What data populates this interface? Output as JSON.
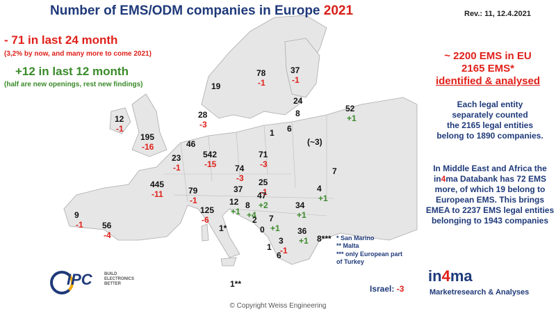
{
  "header": {
    "title_main": "Number of EMS/ODM companies in Europe",
    "title_year": "2021",
    "revision": "Rev.: 11, 12.4.2021"
  },
  "left_stats": {
    "line1": "-   71 in last 24 month",
    "line1_sub": "(3,2% by now, and many more to come 2021)",
    "line2": "+12 in last 12 month",
    "line2_sub": "(half are new openings, rest new findings)"
  },
  "right_panel": {
    "red_lines": [
      "~ 2200 EMS in EU",
      "2165 EMS*",
      "identified & analysed"
    ],
    "blue_block_1": [
      "Each legal entity",
      "separately counted",
      "the 2165 legal entities",
      "belong to 1890 companies."
    ],
    "blue_block_2_pre": "In Middle East and Africa the in",
    "blue_block_2_four": "4",
    "blue_block_2_post": "ma Databank has 72 EMS more, of which 19 belong to European EMS. This brings EMEA to 2237 EMS legal entities belonging to 1943 companies"
  },
  "legend": {
    "line1": "*     San Marino",
    "line2": "**    Malta",
    "line3": "***  only European part",
    "line4": "       of Turkey"
  },
  "israel": {
    "label": "Israel:",
    "value": "-3"
  },
  "in4ma": {
    "pre": "in",
    "four": "4",
    "post": "ma",
    "subtitle": "Marketresearch & Analyses"
  },
  "ipc": {
    "word": "IPC",
    "tag1": "BUILD",
    "tag2": "ELECTRONICS",
    "tag3": "BETTER"
  },
  "copyright": "© Copyright Weiss Engineering",
  "colors": {
    "title_blue": "#1f3a7a",
    "red": "#e0201a",
    "green": "#3a8a2a",
    "land": "#e6e6e6"
  },
  "map_labels": [
    {
      "id": "norway",
      "count": "19"
    },
    {
      "id": "sweden",
      "count": "78",
      "change": "-1",
      "sign": "neg"
    },
    {
      "id": "finland",
      "count": "37",
      "change": "-1",
      "sign": "neg"
    },
    {
      "id": "estonia",
      "count": "24"
    },
    {
      "id": "latvia",
      "count": "8"
    },
    {
      "id": "russia",
      "count": "52",
      "change": "+1",
      "sign": "pos"
    },
    {
      "id": "denmark",
      "count": "28",
      "change": "-3",
      "sign": "neg"
    },
    {
      "id": "lithuania",
      "count": "6"
    },
    {
      "id": "kaliningrad",
      "count": "1"
    },
    {
      "id": "belarus",
      "count": "(~3)"
    },
    {
      "id": "ireland",
      "count": "12",
      "change": "-1",
      "sign": "neg"
    },
    {
      "id": "uk",
      "count": "195",
      "change": "-16",
      "sign": "neg"
    },
    {
      "id": "netherlands",
      "count": "46"
    },
    {
      "id": "belgium",
      "count": "23",
      "change": "-1",
      "sign": "neg"
    },
    {
      "id": "germany",
      "count": "542",
      "change": "-15",
      "sign": "neg"
    },
    {
      "id": "poland",
      "count": "71",
      "change": "-3",
      "sign": "neg"
    },
    {
      "id": "ukraine",
      "count": "7"
    },
    {
      "id": "czechia",
      "count": "74",
      "change": "-3",
      "sign": "neg"
    },
    {
      "id": "slovakia",
      "count": "25",
      "change": "-1",
      "sign": "neg"
    },
    {
      "id": "moldova",
      "count": "4",
      "change": "+1",
      "sign": "pos"
    },
    {
      "id": "france",
      "count": "445",
      "change": "-11",
      "sign": "neg"
    },
    {
      "id": "switzerland",
      "count": "79",
      "change": "-1",
      "sign": "neg"
    },
    {
      "id": "austria",
      "count": "37"
    },
    {
      "id": "hungary",
      "count": "47",
      "change": "+2",
      "sign": "pos"
    },
    {
      "id": "romania",
      "count": "34",
      "change": "+1",
      "sign": "pos"
    },
    {
      "id": "slovenia",
      "count": "12",
      "change": "+1",
      "sign": "pos"
    },
    {
      "id": "croatia",
      "count": "8",
      "change": "+4",
      "sign": "pos"
    },
    {
      "id": "bosnia",
      "count": "2"
    },
    {
      "id": "serbia",
      "count": "7",
      "change": "+1",
      "sign": "pos"
    },
    {
      "id": "montenegro",
      "count": "0"
    },
    {
      "id": "bulgaria",
      "count": "36",
      "change": "+1",
      "sign": "pos"
    },
    {
      "id": "turkey",
      "count": "8***"
    },
    {
      "id": "portugal",
      "count": "9",
      "change": "-1",
      "sign": "neg"
    },
    {
      "id": "spain",
      "count": "56",
      "change": "-4",
      "sign": "neg"
    },
    {
      "id": "italy",
      "count": "125",
      "change": "-6",
      "sign": "neg"
    },
    {
      "id": "sanmarino",
      "count": "1*"
    },
    {
      "id": "macedonia",
      "count": "3",
      "change": "-1",
      "sign": "neg"
    },
    {
      "id": "albania",
      "count": "1"
    },
    {
      "id": "greece",
      "count": "6"
    },
    {
      "id": "malta",
      "count": "1**"
    }
  ]
}
